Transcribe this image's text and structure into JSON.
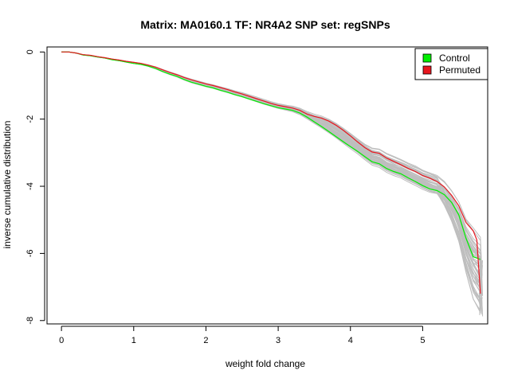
{
  "chart_data": {
    "type": "line",
    "title": "Matrix: MA0160.1 TF: NR4A2 SNP set: regSNPs",
    "xlabel": "weight fold change",
    "ylabel": "inverse cumulative distribution",
    "xlim": [
      -0.2,
      5.9
    ],
    "ylim": [
      -8.1,
      0.15
    ],
    "x_ticks": [
      0,
      1,
      2,
      3,
      4,
      5
    ],
    "y_ticks": [
      0,
      -2,
      -4,
      -6,
      -8
    ],
    "grid": false,
    "legend": {
      "position": "top-right",
      "entries": [
        "Control",
        "Permuted"
      ]
    },
    "colors": {
      "control": "#00ee00",
      "permuted": "#e8161e",
      "background_lines": "#bebebe"
    },
    "series": [
      {
        "name": "Control",
        "x": [
          0,
          0.1,
          0.2,
          0.3,
          0.4,
          0.5,
          0.6,
          0.7,
          0.8,
          0.9,
          1.0,
          1.1,
          1.2,
          1.3,
          1.4,
          1.5,
          1.6,
          1.7,
          1.8,
          1.9,
          2.0,
          2.1,
          2.2,
          2.3,
          2.4,
          2.5,
          2.6,
          2.7,
          2.8,
          2.9,
          3.0,
          3.1,
          3.2,
          3.3,
          3.4,
          3.5,
          3.6,
          3.7,
          3.8,
          3.9,
          4.0,
          4.1,
          4.2,
          4.3,
          4.4,
          4.5,
          4.6,
          4.7,
          4.8,
          4.9,
          5.0,
          5.1,
          5.2,
          5.3,
          5.4,
          5.5,
          5.6,
          5.7,
          5.8
        ],
        "y": [
          0,
          0,
          -0.03,
          -0.09,
          -0.11,
          -0.15,
          -0.18,
          -0.23,
          -0.26,
          -0.3,
          -0.34,
          -0.37,
          -0.42,
          -0.49,
          -0.58,
          -0.66,
          -0.73,
          -0.82,
          -0.9,
          -0.96,
          -1.02,
          -1.07,
          -1.14,
          -1.2,
          -1.27,
          -1.33,
          -1.4,
          -1.47,
          -1.54,
          -1.6,
          -1.66,
          -1.7,
          -1.74,
          -1.82,
          -1.94,
          -2.08,
          -2.22,
          -2.37,
          -2.52,
          -2.67,
          -2.82,
          -2.96,
          -3.12,
          -3.27,
          -3.33,
          -3.47,
          -3.56,
          -3.63,
          -3.75,
          -3.86,
          -3.98,
          -4.08,
          -4.13,
          -4.25,
          -4.48,
          -4.85,
          -5.55,
          -6.1,
          -6.18
        ]
      },
      {
        "name": "Permuted",
        "x": [
          0,
          0.1,
          0.2,
          0.3,
          0.4,
          0.5,
          0.6,
          0.7,
          0.8,
          0.9,
          1.0,
          1.1,
          1.2,
          1.3,
          1.4,
          1.5,
          1.6,
          1.7,
          1.8,
          1.9,
          2.0,
          2.1,
          2.2,
          2.3,
          2.4,
          2.5,
          2.6,
          2.7,
          2.8,
          2.9,
          3.0,
          3.1,
          3.2,
          3.3,
          3.4,
          3.5,
          3.6,
          3.7,
          3.8,
          3.9,
          4.0,
          4.1,
          4.2,
          4.3,
          4.4,
          4.5,
          4.6,
          4.7,
          4.8,
          4.9,
          5.0,
          5.1,
          5.2,
          5.3,
          5.4,
          5.5,
          5.6,
          5.7,
          5.75,
          5.8
        ],
        "y": [
          0,
          0,
          -0.03,
          -0.08,
          -0.1,
          -0.14,
          -0.17,
          -0.21,
          -0.24,
          -0.28,
          -0.31,
          -0.34,
          -0.39,
          -0.45,
          -0.53,
          -0.61,
          -0.68,
          -0.76,
          -0.83,
          -0.89,
          -0.95,
          -1.0,
          -1.06,
          -1.12,
          -1.19,
          -1.25,
          -1.32,
          -1.39,
          -1.46,
          -1.53,
          -1.59,
          -1.63,
          -1.67,
          -1.74,
          -1.85,
          -1.92,
          -1.97,
          -2.06,
          -2.18,
          -2.33,
          -2.5,
          -2.68,
          -2.85,
          -2.98,
          -3.02,
          -3.16,
          -3.26,
          -3.36,
          -3.47,
          -3.56,
          -3.68,
          -3.76,
          -3.86,
          -4.02,
          -4.27,
          -4.58,
          -5.08,
          -5.33,
          -5.6,
          -7.2
        ]
      }
    ]
  }
}
